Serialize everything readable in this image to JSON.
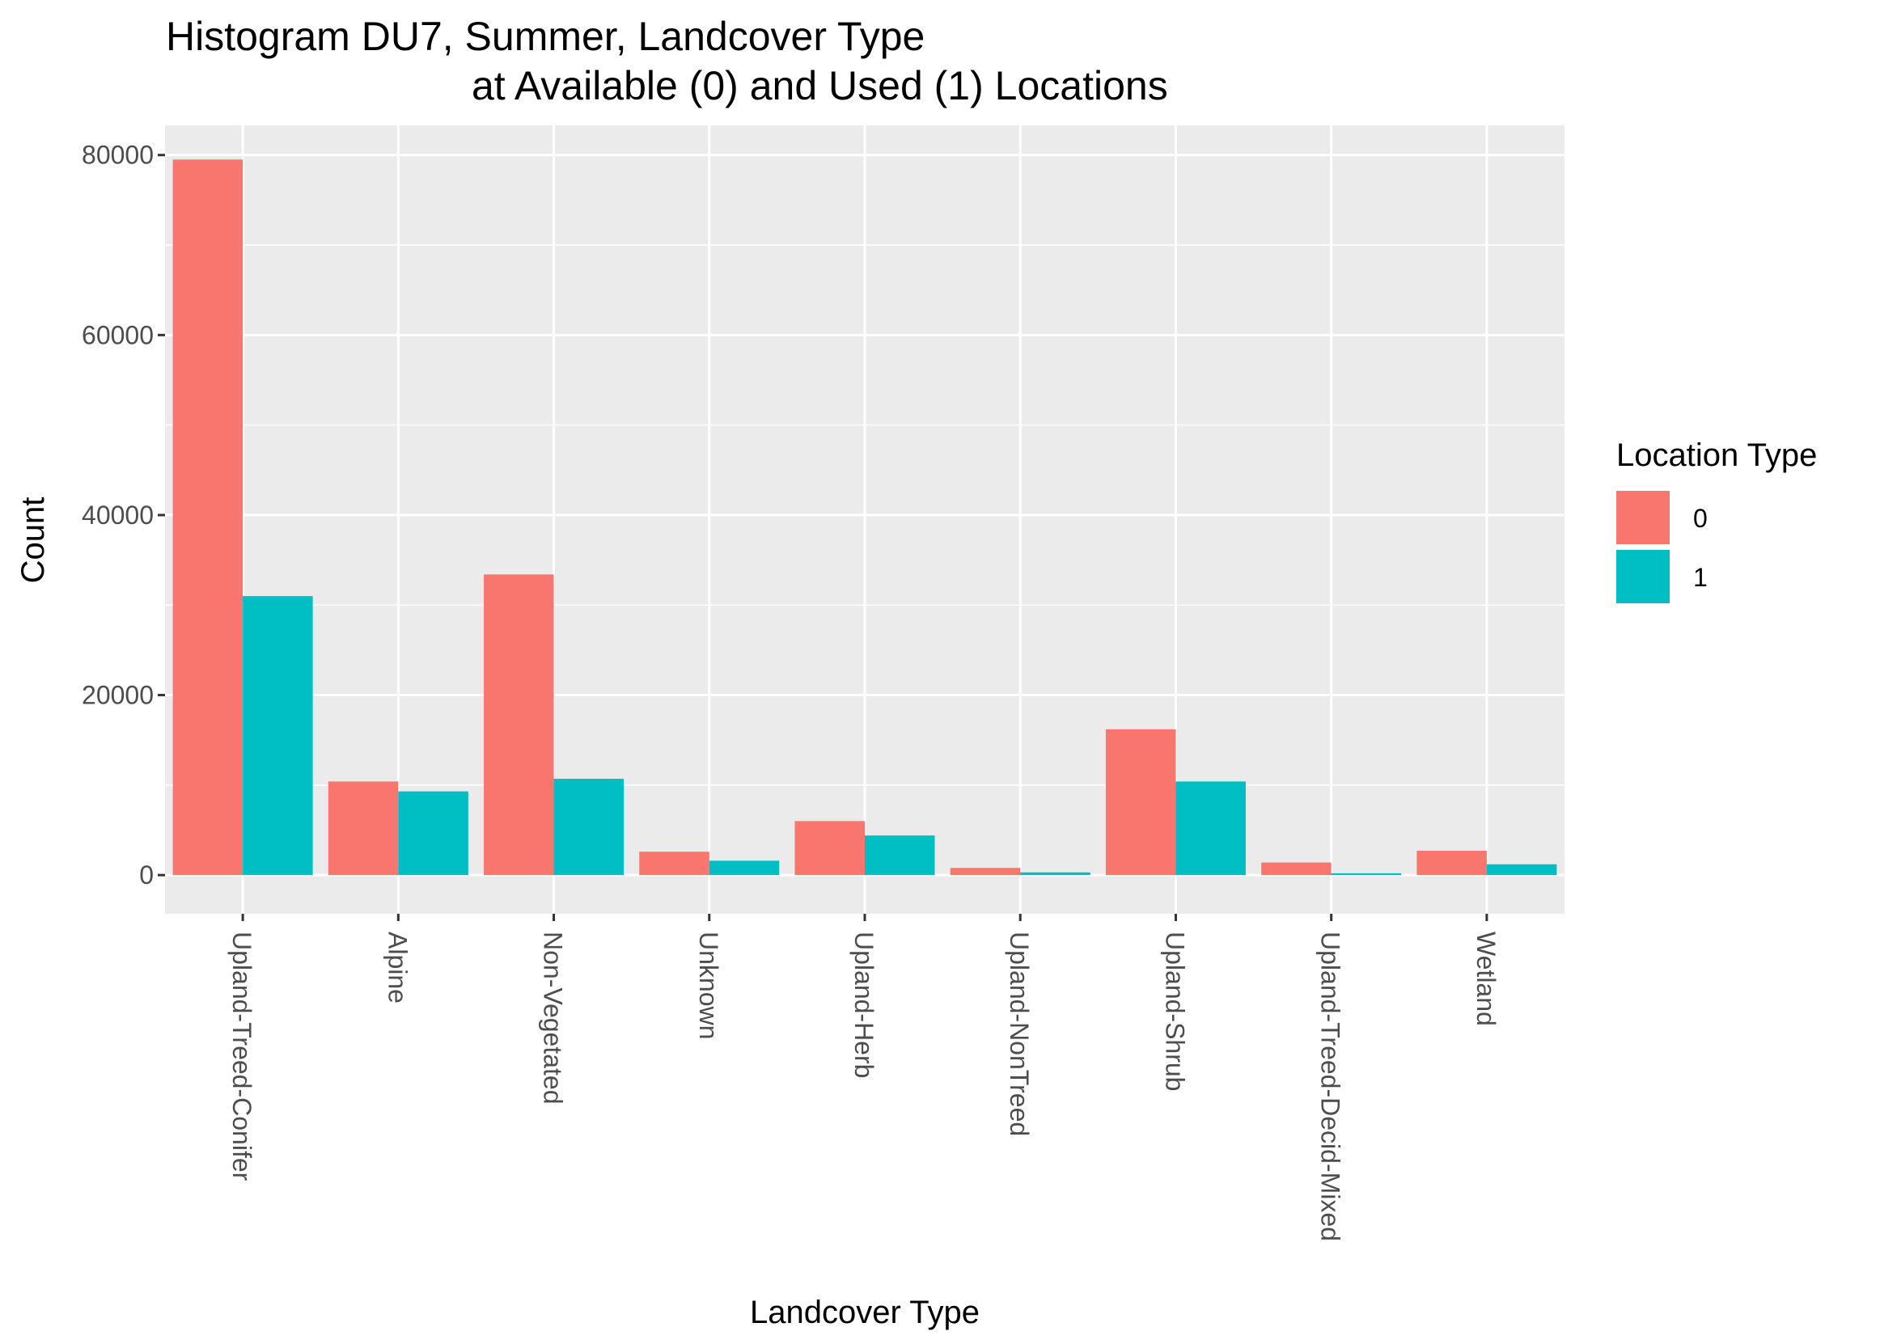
{
  "chart_data": {
    "type": "bar",
    "title_line1": "Histogram DU7, Summer, Landcover Type",
    "title_line2": "at Available (0) and Used (1) Locations",
    "xlabel": "Landcover Type",
    "ylabel": "Count",
    "ylim": [
      -4300,
      83300
    ],
    "yticks": [
      0,
      20000,
      40000,
      60000,
      80000
    ],
    "ytick_labels": [
      "0",
      "20000",
      "40000",
      "60000",
      "80000"
    ],
    "grid": true,
    "categories": [
      "Upland-Treed-Conifer",
      "Alpine",
      "Non-Vegetated",
      "Unknown",
      "Upland-Herb",
      "Upland-NonTreed",
      "Upland-Shrub",
      "Upland-Treed-Decid-Mixed",
      "Wetland"
    ],
    "series": [
      {
        "name": "0",
        "color": "#F8766D",
        "values": [
          79500,
          10400,
          33400,
          2600,
          6000,
          800,
          16200,
          1400,
          2700
        ]
      },
      {
        "name": "1",
        "color": "#00BFC4",
        "values": [
          31000,
          9300,
          10700,
          1600,
          4400,
          300,
          10400,
          200,
          1200
        ]
      }
    ],
    "legend": {
      "title": "Location Type",
      "position": "right"
    }
  }
}
